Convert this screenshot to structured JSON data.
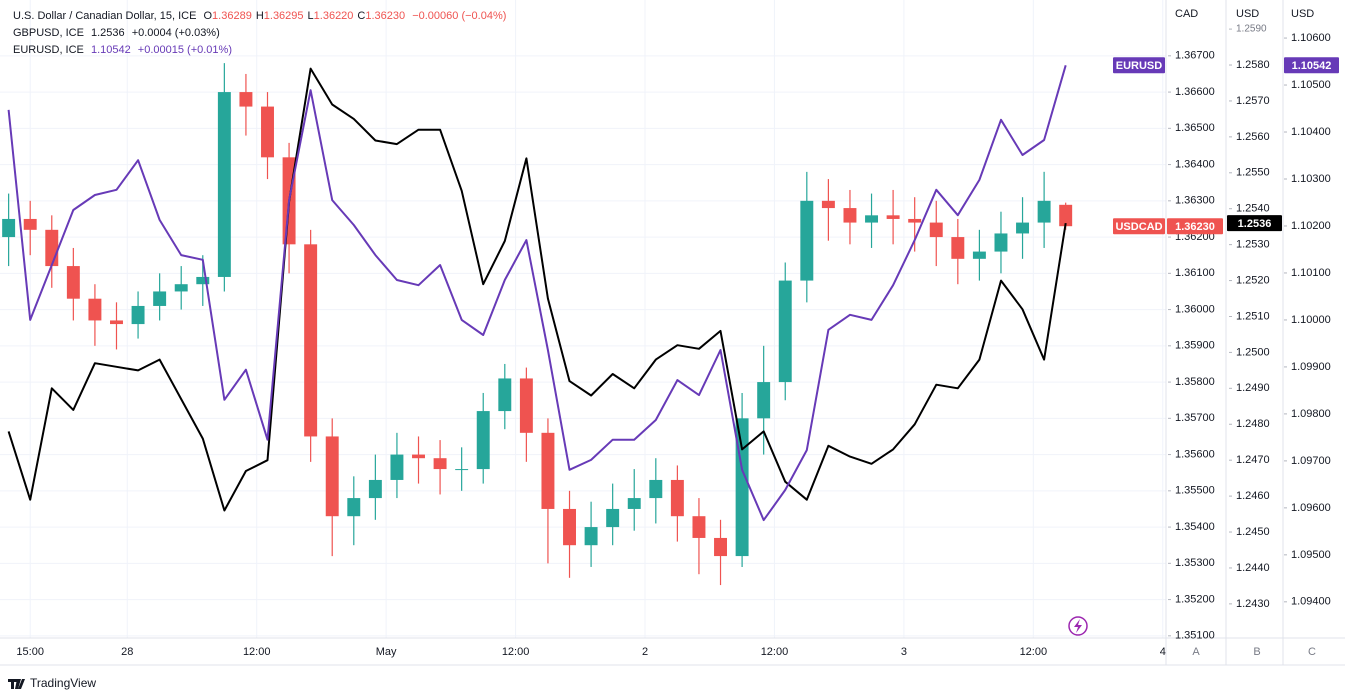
{
  "chart_data": {
    "type": "candlestick",
    "title": "U.S. Dollar / Canadian Dollar, 15, ICE",
    "ohlc_legend": [
      {
        "key": "O",
        "value": "1.36289"
      },
      {
        "key": "H",
        "value": "1.36295"
      },
      {
        "key": "L",
        "value": "1.36220"
      },
      {
        "key": "C",
        "value": "1.36230"
      }
    ],
    "change": "−0.00060 (−0.04%)",
    "symbol_tag": "USDCAD",
    "up_color": "#26a69a",
    "down_color": "#ef5350",
    "x": [
      -11,
      -9,
      -7,
      -5,
      -3,
      -1,
      1,
      3,
      5,
      7,
      9,
      11,
      13,
      15,
      17,
      19,
      21,
      23,
      25,
      27,
      29,
      31,
      33,
      35,
      37,
      39,
      41,
      43,
      45,
      47,
      49,
      51,
      53,
      55,
      57,
      59,
      61,
      63,
      65,
      67,
      69,
      71,
      73,
      75,
      77,
      79,
      81,
      83,
      85,
      87
    ],
    "open": [
      1.362,
      1.3625,
      1.3622,
      1.3612,
      1.3603,
      1.3597,
      1.3596,
      1.3601,
      1.3605,
      1.3607,
      1.3609,
      1.366,
      1.3656,
      1.3642,
      1.3618,
      1.3565,
      1.3543,
      1.3548,
      1.3553,
      1.356,
      1.3559,
      1.3556,
      1.3556,
      1.3572,
      1.3581,
      1.3566,
      1.3545,
      1.3535,
      1.354,
      1.3545,
      1.3548,
      1.3553,
      1.3543,
      1.3537,
      1.3532,
      1.357,
      1.358,
      1.3608,
      1.363,
      1.3628,
      1.3624,
      1.3626,
      1.3625,
      1.3624,
      1.362,
      1.3614,
      1.3616,
      1.3621,
      1.3624,
      1.36289
    ],
    "high": [
      1.3632,
      1.363,
      1.3626,
      1.3617,
      1.3607,
      1.3602,
      1.3605,
      1.361,
      1.3612,
      1.3615,
      1.3668,
      1.3665,
      1.366,
      1.3646,
      1.3622,
      1.357,
      1.3554,
      1.356,
      1.3566,
      1.3565,
      1.3564,
      1.3562,
      1.3577,
      1.3585,
      1.3584,
      1.357,
      1.355,
      1.3547,
      1.3552,
      1.3556,
      1.3559,
      1.3557,
      1.3548,
      1.3542,
      1.3577,
      1.359,
      1.3613,
      1.3638,
      1.3636,
      1.3633,
      1.3632,
      1.3633,
      1.3631,
      1.363,
      1.3625,
      1.3622,
      1.3627,
      1.3631,
      1.3638,
      1.36295
    ],
    "low": [
      1.3612,
      1.3615,
      1.3606,
      1.3597,
      1.359,
      1.3589,
      1.3592,
      1.3597,
      1.36,
      1.3601,
      1.3605,
      1.3648,
      1.3636,
      1.361,
      1.3558,
      1.3532,
      1.3535,
      1.3542,
      1.3548,
      1.3552,
      1.3549,
      1.355,
      1.3552,
      1.3567,
      1.3558,
      1.353,
      1.3526,
      1.3529,
      1.3535,
      1.3539,
      1.3541,
      1.3536,
      1.3527,
      1.3524,
      1.3529,
      1.356,
      1.3575,
      1.3602,
      1.3619,
      1.3618,
      1.3617,
      1.3618,
      1.3616,
      1.3612,
      1.3607,
      1.3608,
      1.361,
      1.3614,
      1.3617,
      1.3622
    ],
    "close": [
      1.3625,
      1.3622,
      1.3612,
      1.3603,
      1.3597,
      1.3596,
      1.3601,
      1.3605,
      1.3607,
      1.3609,
      1.366,
      1.3656,
      1.3642,
      1.3618,
      1.3565,
      1.3543,
      1.3548,
      1.3553,
      1.356,
      1.3559,
      1.3556,
      1.3556,
      1.3572,
      1.3581,
      1.3566,
      1.3545,
      1.3535,
      1.354,
      1.3545,
      1.3548,
      1.3553,
      1.3543,
      1.3537,
      1.3532,
      1.357,
      1.358,
      1.3608,
      1.363,
      1.3628,
      1.3624,
      1.3626,
      1.3625,
      1.3624,
      1.362,
      1.3614,
      1.3616,
      1.3621,
      1.3624,
      1.363,
      1.3623
    ],
    "series": [
      {
        "name": "GBPUSD, ICE",
        "type": "line",
        "axis": "y2",
        "color": "#000000",
        "last_label": "1.2536",
        "change": "+0.0004 (+0.03%)",
        "tag_color": "#000000",
        "values": [
          1.2478,
          1.2459,
          1.249,
          1.2484,
          1.2497,
          1.2496,
          1.2495,
          1.2498,
          1.2487,
          1.2476,
          1.2456,
          1.2467,
          1.247,
          1.2542,
          1.2579,
          1.2569,
          1.2565,
          1.2559,
          1.2558,
          1.2562,
          1.2562,
          1.2545,
          1.2519,
          1.2531,
          1.2554,
          1.2515,
          1.2492,
          1.2488,
          1.2494,
          1.249,
          1.2498,
          1.2502,
          1.2501,
          1.2506,
          1.2473,
          1.2478,
          1.2464,
          1.2459,
          1.2474,
          1.2471,
          1.2469,
          1.2473,
          1.248,
          1.2491,
          1.249,
          1.2498,
          1.252,
          1.2512,
          1.2498,
          1.2536
        ]
      },
      {
        "name": "EURUSD, ICE",
        "type": "line",
        "axis": "y3",
        "color": "#673ab7",
        "tag": "EURUSD",
        "last_label": "1.10542",
        "change": "+0.00015 (+0.01%)",
        "tag_color": "#673ab7",
        "values": [
          1.10447,
          1.1,
          1.10117,
          1.10234,
          1.10266,
          1.10277,
          1.1034,
          1.10213,
          1.10138,
          1.10128,
          1.0983,
          1.09894,
          1.09745,
          1.10255,
          1.10489,
          1.10255,
          1.10202,
          1.10138,
          1.10085,
          1.10074,
          1.10117,
          1.1,
          1.09968,
          1.10085,
          1.1017,
          1.09936,
          1.09681,
          1.09702,
          1.09745,
          1.09745,
          1.09787,
          1.09872,
          1.0984,
          1.09936,
          1.09681,
          1.09574,
          1.09638,
          1.09723,
          1.09979,
          1.10011,
          1.1,
          1.10074,
          1.1017,
          1.10277,
          1.10223,
          1.10298,
          1.10426,
          1.10351,
          1.10383,
          1.10542
        ]
      }
    ],
    "xlim": [
      -11.8,
      96.3
    ],
    "xticks": [
      {
        "value": -9,
        "label": "15:00"
      },
      {
        "value": 0,
        "label": "28"
      },
      {
        "value": 12,
        "label": "12:00"
      },
      {
        "value": 24,
        "label": "May"
      },
      {
        "value": 36,
        "label": "12:00"
      },
      {
        "value": 48,
        "label": "2"
      },
      {
        "value": 60,
        "label": "12:00"
      },
      {
        "value": 72,
        "label": "3"
      },
      {
        "value": 84,
        "label": "12:00"
      },
      {
        "value": 96,
        "label": "4"
      }
    ],
    "ylim": [
      1.35094,
      1.36854
    ],
    "y_label": "CAD",
    "yticks": [
      {
        "value": 1.351,
        "label": "1.35100"
      },
      {
        "value": 1.352,
        "label": "1.35200"
      },
      {
        "value": 1.353,
        "label": "1.35300"
      },
      {
        "value": 1.354,
        "label": "1.35400"
      },
      {
        "value": 1.355,
        "label": "1.35500"
      },
      {
        "value": 1.356,
        "label": "1.35600"
      },
      {
        "value": 1.357,
        "label": "1.35700"
      },
      {
        "value": 1.358,
        "label": "1.35800"
      },
      {
        "value": 1.359,
        "label": "1.35900"
      },
      {
        "value": 1.36,
        "label": "1.36000"
      },
      {
        "value": 1.361,
        "label": "1.36100"
      },
      {
        "value": 1.362,
        "label": "1.36200"
      },
      {
        "value": 1.363,
        "label": "1.36300"
      },
      {
        "value": 1.364,
        "label": "1.36400"
      },
      {
        "value": 1.365,
        "label": "1.36500"
      },
      {
        "value": 1.366,
        "label": "1.36600"
      },
      {
        "value": 1.367,
        "label": "1.36700"
      }
    ],
    "y2lim": [
      1.24205,
      1.25981
    ],
    "y2_label": "USD",
    "y2ticks": [
      {
        "value": 1.243,
        "label": "1.2430"
      },
      {
        "value": 1.244,
        "label": "1.2440"
      },
      {
        "value": 1.245,
        "label": "1.2450"
      },
      {
        "value": 1.246,
        "label": "1.2460"
      },
      {
        "value": 1.247,
        "label": "1.2470"
      },
      {
        "value": 1.248,
        "label": "1.2480"
      },
      {
        "value": 1.249,
        "label": "1.2490"
      },
      {
        "value": 1.25,
        "label": "1.2500"
      },
      {
        "value": 1.251,
        "label": "1.2510"
      },
      {
        "value": 1.252,
        "label": "1.2520"
      },
      {
        "value": 1.253,
        "label": "1.2530"
      },
      {
        "value": 1.254,
        "label": "1.2540"
      },
      {
        "value": 1.255,
        "label": "1.2550"
      },
      {
        "value": 1.256,
        "label": "1.2560"
      },
      {
        "value": 1.257,
        "label": "1.2570"
      },
      {
        "value": 1.258,
        "label": "1.2580"
      },
      {
        "value": 1.259,
        "label": "1.2590"
      }
    ],
    "y3lim": [
      1.09323,
      1.10681
    ],
    "y3_label": "USD",
    "y3ticks": [
      {
        "value": 1.094,
        "label": "1.09400"
      },
      {
        "value": 1.095,
        "label": "1.09500"
      },
      {
        "value": 1.096,
        "label": "1.09600"
      },
      {
        "value": 1.097,
        "label": "1.09700"
      },
      {
        "value": 1.098,
        "label": "1.09800"
      },
      {
        "value": 1.099,
        "label": "1.09900"
      },
      {
        "value": 1.1,
        "label": "1.10000"
      },
      {
        "value": 1.101,
        "label": "1.10100"
      },
      {
        "value": 1.102,
        "label": "1.10200"
      },
      {
        "value": 1.103,
        "label": "1.10300"
      },
      {
        "value": 1.104,
        "label": "1.10400"
      },
      {
        "value": 1.105,
        "label": "1.10500"
      },
      {
        "value": 1.106,
        "label": "1.10600"
      }
    ],
    "axis_letters": [
      "A",
      "B",
      "C"
    ],
    "grid": true,
    "brand": "TradingView"
  }
}
